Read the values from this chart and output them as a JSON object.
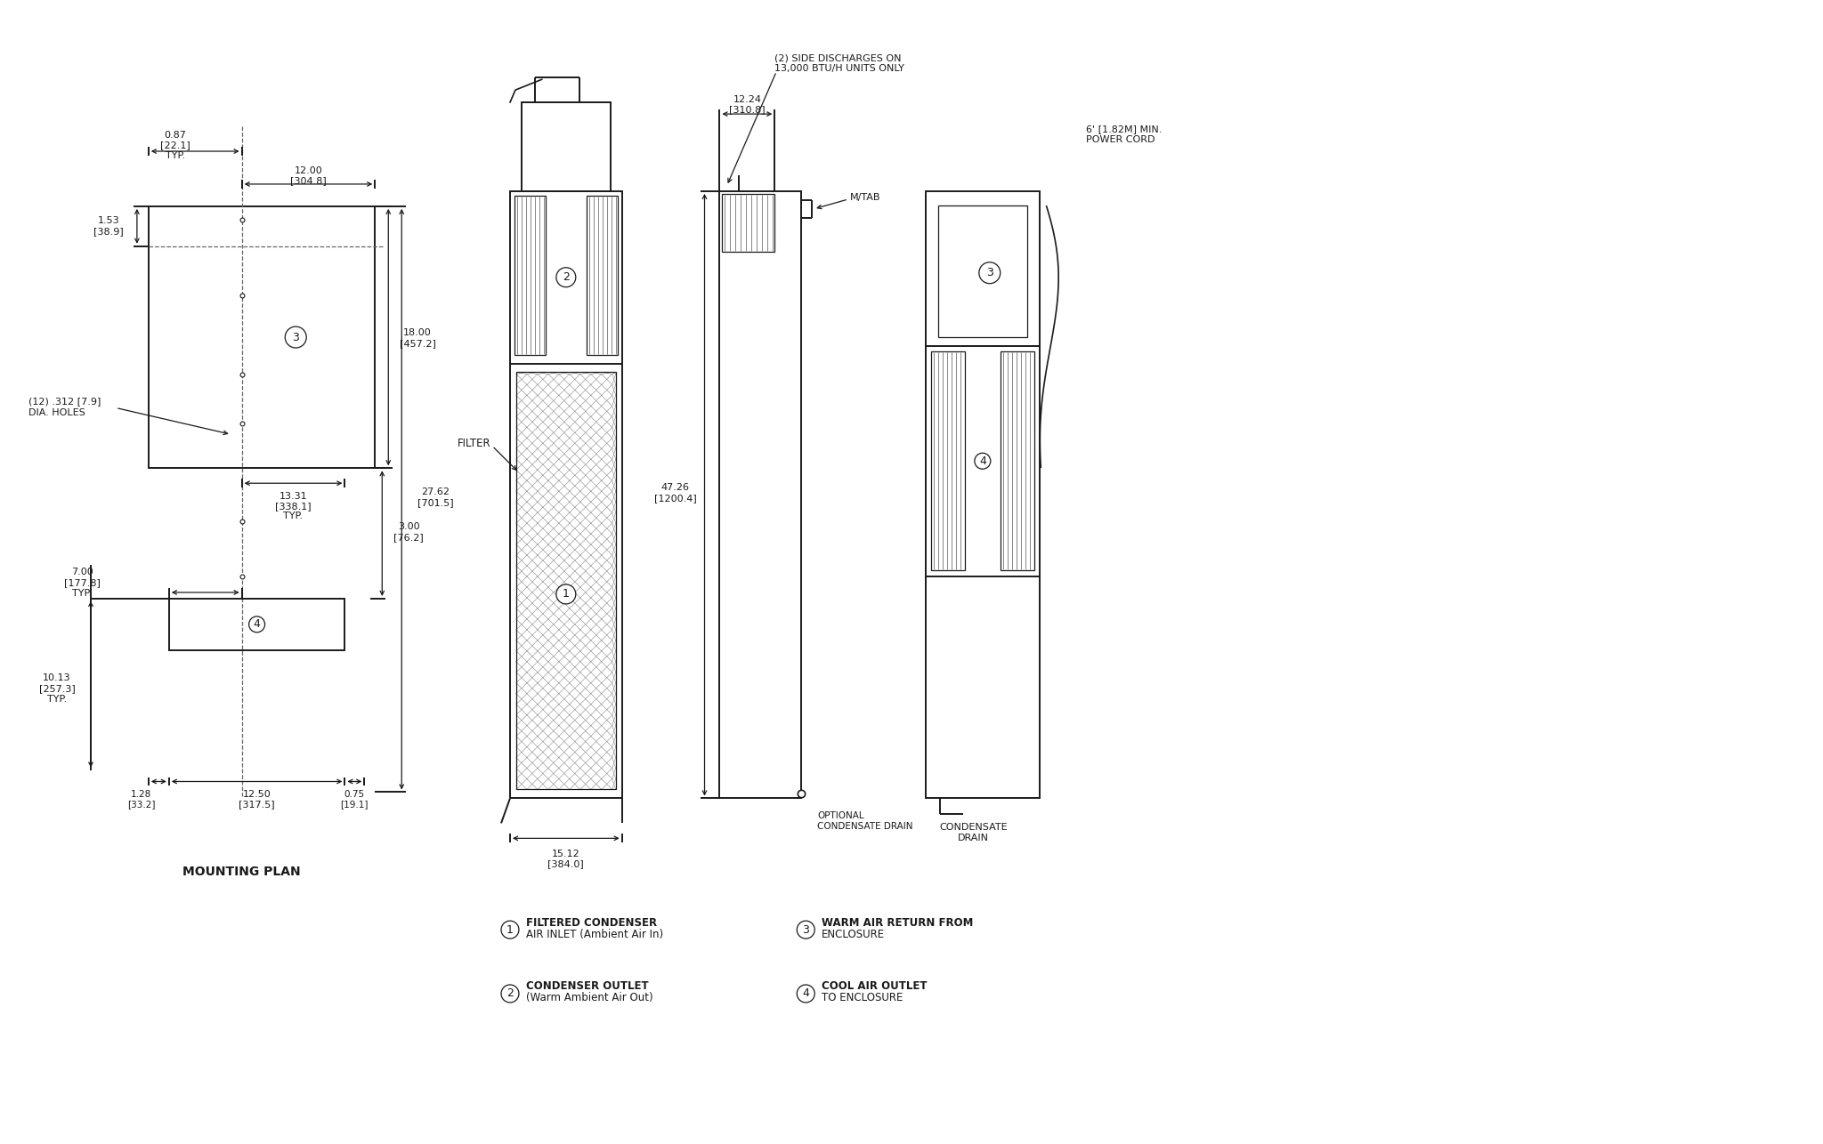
{
  "bg": "#ffffff",
  "lc": "#1a1a1a",
  "legend": [
    {
      "sym": "1",
      "l1": "FILTERED CONDENSER",
      "l2": "AIR INLET (Ambient Air In)"
    },
    {
      "sym": "2",
      "l1": "CONDENSER OUTLET",
      "l2": "(Warm Ambient Air Out)"
    },
    {
      "sym": "3",
      "l1": "WARM AIR RETURN FROM",
      "l2": "ENCLOSURE"
    },
    {
      "sym": "4",
      "l1": "COOL AIR OUTLET",
      "l2": "TO ENCLOSURE"
    }
  ],
  "mounting_plan_label": "MOUNTING PLAN",
  "filter_label": "FILTER",
  "holes_label1": "(12) .312 [7.9]",
  "holes_label2": "DIA. HOLES",
  "side_note1": "(2) SIDE DISCHARGES ON",
  "side_note2": "13,000 BTU/H UNITS ONLY",
  "mtab": "M/TAB",
  "opt_drain1": "OPTIONAL",
  "opt_drain2": "CONDENSATE DRAIN",
  "power_cord1": "6' [1.82M] MIN.",
  "power_cord2": "POWER CORD",
  "cond_drain1": "CONDENSATE",
  "cond_drain2": "DRAIN"
}
